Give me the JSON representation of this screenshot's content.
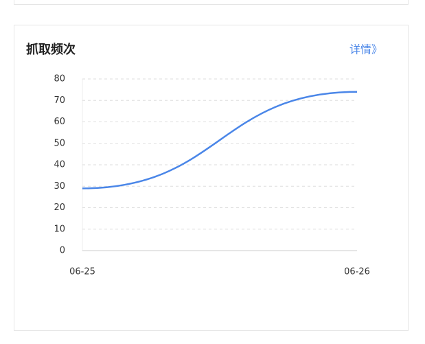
{
  "title": "抓取频次",
  "link": "详情》",
  "chart_data": {
    "type": "line",
    "categories": [
      "06-25",
      "06-26"
    ],
    "values": [
      29,
      74
    ],
    "color": "#4a86e8",
    "ylim": [
      0,
      80
    ],
    "yticks": [
      0,
      10,
      20,
      30,
      40,
      50,
      60,
      70,
      80
    ],
    "grid": true
  }
}
